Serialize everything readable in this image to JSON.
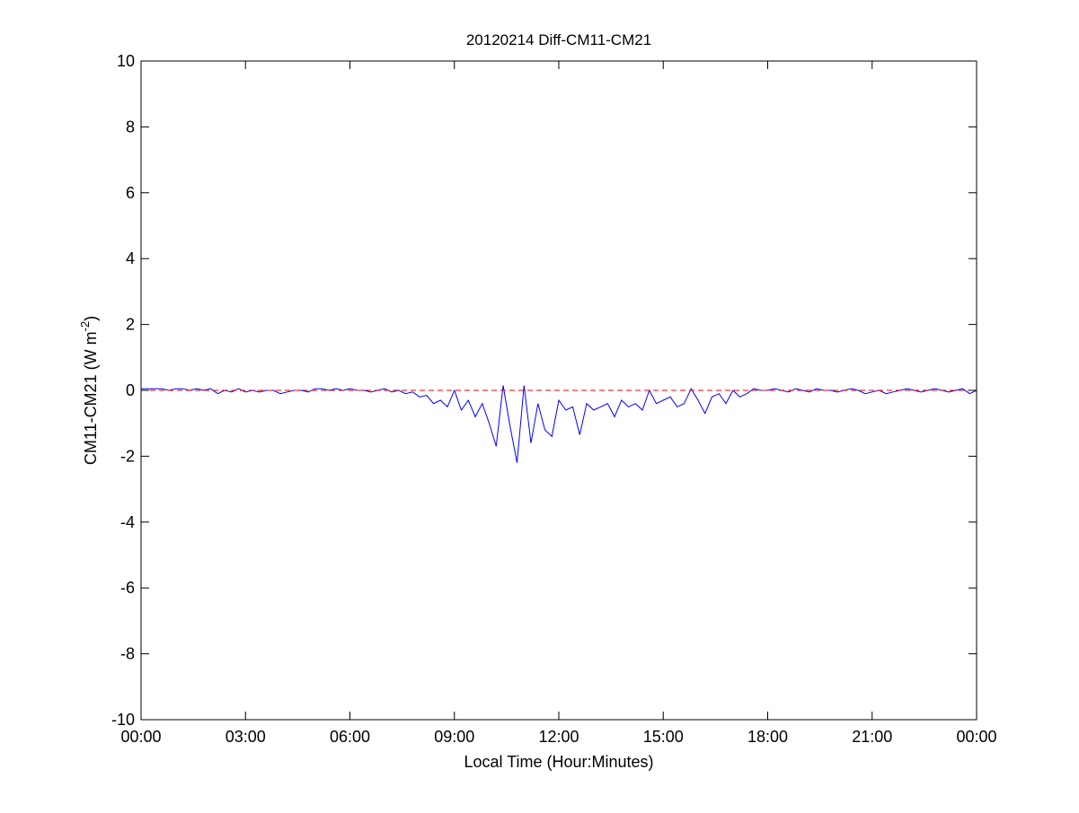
{
  "chart_data": {
    "type": "line",
    "title": "20120214 Diff-CM11-CM21",
    "xlabel": "Local Time (Hour:Minutes)",
    "ylabel": "CM11-CM21 (W m",
    "ylabel_sup": "-2",
    "ylabel_end": ")",
    "xlim": [
      0,
      24
    ],
    "ylim": [
      -10,
      10
    ],
    "xticks": [
      0,
      3,
      6,
      9,
      12,
      15,
      18,
      21,
      24
    ],
    "xtick_labels": [
      "00:00",
      "03:00",
      "06:00",
      "09:00",
      "12:00",
      "15:00",
      "18:00",
      "21:00",
      "00:00"
    ],
    "yticks": [
      -10,
      -8,
      -6,
      -4,
      -2,
      0,
      2,
      4,
      6,
      8,
      10
    ],
    "ytick_labels": [
      "-10",
      "-8",
      "-6",
      "-4",
      "-2",
      "0",
      "2",
      "4",
      "6",
      "8",
      "10"
    ],
    "grid": false,
    "reference_line": {
      "y": 0,
      "color": "#ff0000",
      "style": "dashed"
    },
    "series": [
      {
        "name": "CM11-CM21",
        "color": "#0000ff",
        "x_step_hours": 0.2,
        "values": [
          0.05,
          0.05,
          0.05,
          0.05,
          0,
          0.05,
          0.05,
          0,
          0.05,
          0,
          0.05,
          -0.1,
          0,
          -0.05,
          0.05,
          -0.05,
          0,
          -0.05,
          0,
          0,
          -0.1,
          -0.05,
          0,
          0,
          -0.05,
          0.05,
          0.05,
          0,
          0.05,
          0,
          0.05,
          0,
          0,
          -0.05,
          0,
          0.05,
          -0.05,
          0,
          -0.1,
          -0.05,
          -0.2,
          -0.15,
          -0.4,
          -0.3,
          -0.5,
          0,
          -0.6,
          -0.3,
          -0.8,
          -0.4,
          -1.0,
          -1.7,
          0.15,
          -1.1,
          -2.2,
          0.15,
          -1.6,
          -0.4,
          -1.2,
          -1.4,
          -0.3,
          -0.6,
          -0.5,
          -1.35,
          -0.4,
          -0.6,
          -0.5,
          -0.4,
          -0.8,
          -0.3,
          -0.5,
          -0.4,
          -0.6,
          0,
          -0.4,
          -0.3,
          -0.2,
          -0.5,
          -0.4,
          0.05,
          -0.3,
          -0.7,
          -0.2,
          -0.1,
          -0.4,
          0,
          -0.2,
          -0.1,
          0.05,
          0,
          0,
          0.05,
          0,
          -0.05,
          0.05,
          0,
          -0.05,
          0.05,
          0,
          0,
          -0.05,
          0,
          0.05,
          0,
          -0.1,
          -0.05,
          0,
          -0.1,
          -0.05,
          0,
          0.05,
          0,
          -0.05,
          0,
          0.05,
          0,
          -0.05,
          0,
          0.05,
          -0.1,
          0
        ]
      }
    ]
  }
}
